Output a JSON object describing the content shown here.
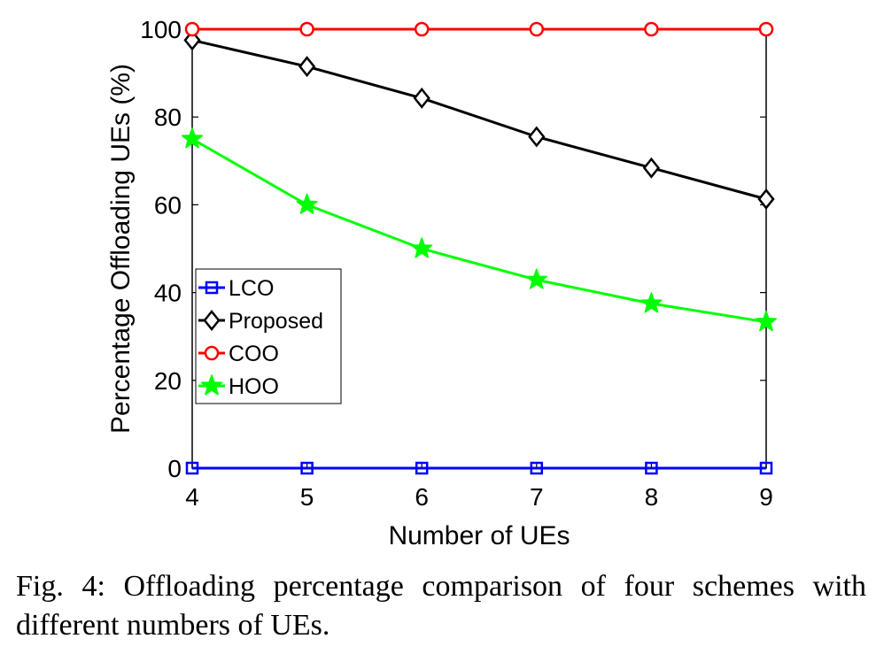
{
  "chart_data": {
    "type": "line",
    "xlabel": "Number of UEs",
    "ylabel": "Percentage Offloading UEs (%)",
    "x": [
      4,
      5,
      6,
      7,
      8,
      9
    ],
    "xlim": [
      4,
      9
    ],
    "ylim": [
      0,
      100
    ],
    "xticks": [
      "4",
      "5",
      "6",
      "7",
      "8",
      "9"
    ],
    "yticks": [
      "0",
      "20",
      "40",
      "60",
      "80",
      "100"
    ],
    "grid": false,
    "legend_position": "middle-left",
    "series": [
      {
        "name": "LCO",
        "color": "#0000ff",
        "marker": "square",
        "values": [
          0,
          0,
          0,
          0,
          0,
          0
        ]
      },
      {
        "name": "Proposed",
        "color": "#000000",
        "marker": "diamond",
        "values": [
          97.5,
          91.5,
          84.3,
          75.5,
          68.4,
          61.3
        ]
      },
      {
        "name": "COO",
        "color": "#ff0000",
        "marker": "circle",
        "values": [
          100,
          100,
          100,
          100,
          100,
          100
        ]
      },
      {
        "name": "HOO",
        "color": "#00ff00",
        "marker": "star",
        "values": [
          75,
          60,
          50,
          42.9,
          37.5,
          33.3
        ]
      }
    ]
  },
  "caption": "Fig. 4: Offloading percentage comparison of four schemes with different numbers of UEs."
}
